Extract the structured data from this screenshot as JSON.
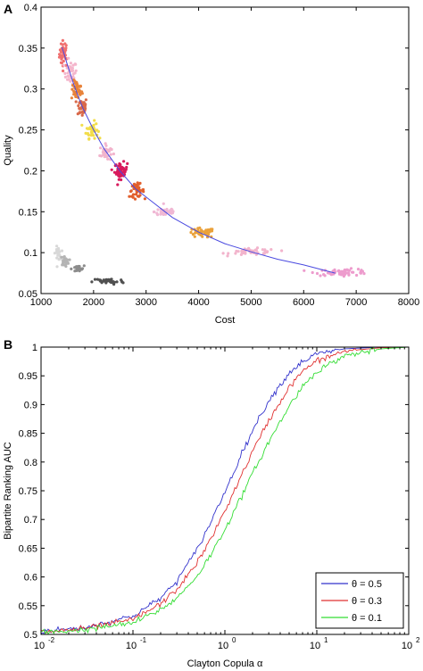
{
  "panels": [
    {
      "letter": "A"
    },
    {
      "letter": "B"
    }
  ],
  "chart_data": [
    {
      "type": "scatter",
      "xlabel": "Cost",
      "ylabel": "Quality",
      "xlim": [
        1000,
        8000
      ],
      "ylim": [
        0.05,
        0.4
      ],
      "xticks": [
        1000,
        2000,
        3000,
        4000,
        5000,
        6000,
        7000,
        8000
      ],
      "yticks": [
        0.05,
        0.1,
        0.15,
        0.2,
        0.25,
        0.3,
        0.35,
        0.4
      ],
      "clusters": [
        {
          "cx": 1430,
          "cy": 0.343,
          "sx": 40,
          "sy": 0.008,
          "n": 40,
          "color": "#f07070"
        },
        {
          "cx": 1560,
          "cy": 0.32,
          "sx": 60,
          "sy": 0.007,
          "n": 35,
          "color": "#f4b6cc"
        },
        {
          "cx": 1680,
          "cy": 0.298,
          "sx": 50,
          "sy": 0.006,
          "n": 40,
          "color": "#e8833a"
        },
        {
          "cx": 1780,
          "cy": 0.278,
          "sx": 50,
          "sy": 0.006,
          "n": 40,
          "color": "#d9694a"
        },
        {
          "cx": 1970,
          "cy": 0.25,
          "sx": 55,
          "sy": 0.005,
          "n": 45,
          "color": "#f2dd4a"
        },
        {
          "cx": 2230,
          "cy": 0.222,
          "sx": 55,
          "sy": 0.005,
          "n": 35,
          "color": "#f2b4cc"
        },
        {
          "cx": 2520,
          "cy": 0.2,
          "sx": 60,
          "sy": 0.005,
          "n": 50,
          "color": "#d81a5c"
        },
        {
          "cx": 2820,
          "cy": 0.176,
          "sx": 70,
          "sy": 0.004,
          "n": 45,
          "color": "#e25f2c"
        },
        {
          "cx": 3380,
          "cy": 0.15,
          "sx": 110,
          "sy": 0.003,
          "n": 40,
          "color": "#f0b8d4"
        },
        {
          "cx": 4050,
          "cy": 0.124,
          "sx": 130,
          "sy": 0.003,
          "n": 45,
          "color": "#eaa13a"
        },
        {
          "cx": 5050,
          "cy": 0.101,
          "sx": 220,
          "sy": 0.002,
          "n": 50,
          "color": "#f2b4cc"
        },
        {
          "cx": 6750,
          "cy": 0.076,
          "sx": 260,
          "sy": 0.002,
          "n": 55,
          "color": "#ed9ccd"
        },
        {
          "cx": 1320,
          "cy": 0.099,
          "sx": 25,
          "sy": 0.004,
          "n": 25,
          "color": "#d8d8d8"
        },
        {
          "cx": 1450,
          "cy": 0.09,
          "sx": 40,
          "sy": 0.003,
          "n": 25,
          "color": "#b4b4b4"
        },
        {
          "cx": 1700,
          "cy": 0.08,
          "sx": 60,
          "sy": 0.002,
          "n": 25,
          "color": "#8c8c8c"
        },
        {
          "cx": 2280,
          "cy": 0.065,
          "sx": 150,
          "sy": 0.002,
          "n": 40,
          "color": "#505050"
        }
      ],
      "curve": {
        "color": "#4a4ae0",
        "points": [
          [
            1400,
            0.351
          ],
          [
            1500,
            0.33
          ],
          [
            1600,
            0.31
          ],
          [
            1700,
            0.292
          ],
          [
            1800,
            0.276
          ],
          [
            2000,
            0.25
          ],
          [
            2200,
            0.227
          ],
          [
            2500,
            0.2
          ],
          [
            2800,
            0.178
          ],
          [
            3100,
            0.163
          ],
          [
            3500,
            0.143
          ],
          [
            4000,
            0.125
          ],
          [
            4500,
            0.111
          ],
          [
            5000,
            0.101
          ],
          [
            5500,
            0.092
          ],
          [
            6000,
            0.085
          ],
          [
            6600,
            0.075
          ]
        ]
      }
    },
    {
      "type": "line",
      "xlabel": "Clayton Copula α",
      "ylabel": "Bipartite Ranking AUC",
      "xscale": "log",
      "xlim": [
        0.01,
        100
      ],
      "ylim": [
        0.5,
        1
      ],
      "xticks": [
        0.01,
        0.1,
        1,
        10,
        100
      ],
      "xtick_labels": [
        {
          "base": "10",
          "exp": "-2"
        },
        {
          "base": "10",
          "exp": "-1"
        },
        {
          "base": "10",
          "exp": "0"
        },
        {
          "base": "10",
          "exp": "1"
        },
        {
          "base": "10",
          "exp": "2"
        }
      ],
      "yticks": [
        0.5,
        0.55,
        0.6,
        0.65,
        0.7,
        0.75,
        0.8,
        0.85,
        0.9,
        0.95,
        1
      ],
      "legend_position": "bottom-right",
      "series": [
        {
          "name": "θ = 0.5",
          "color": "#3333cc",
          "x": [
            0.01,
            0.03,
            0.1,
            0.2,
            0.3,
            0.5,
            0.7,
            1,
            1.5,
            2,
            3,
            5,
            7,
            10,
            20,
            50,
            100
          ],
          "y": [
            0.505,
            0.512,
            0.532,
            0.563,
            0.593,
            0.648,
            0.695,
            0.748,
            0.812,
            0.855,
            0.907,
            0.955,
            0.975,
            0.988,
            0.997,
            1.0,
            1.0
          ]
        },
        {
          "name": "θ = 0.3",
          "color": "#e03030",
          "x": [
            0.01,
            0.03,
            0.1,
            0.2,
            0.3,
            0.5,
            0.7,
            1,
            1.5,
            2,
            3,
            5,
            7,
            10,
            20,
            50,
            100
          ],
          "y": [
            0.504,
            0.51,
            0.526,
            0.553,
            0.578,
            0.625,
            0.665,
            0.715,
            0.775,
            0.818,
            0.872,
            0.93,
            0.958,
            0.976,
            0.993,
            0.999,
            1.0
          ]
        },
        {
          "name": "θ = 0.1",
          "color": "#33dd33",
          "x": [
            0.01,
            0.03,
            0.1,
            0.2,
            0.3,
            0.5,
            0.7,
            1,
            1.5,
            2,
            3,
            5,
            7,
            10,
            20,
            50,
            100
          ],
          "y": [
            0.503,
            0.508,
            0.52,
            0.543,
            0.563,
            0.602,
            0.638,
            0.683,
            0.738,
            0.78,
            0.835,
            0.897,
            0.932,
            0.958,
            0.985,
            0.997,
            1.0
          ]
        }
      ]
    }
  ]
}
